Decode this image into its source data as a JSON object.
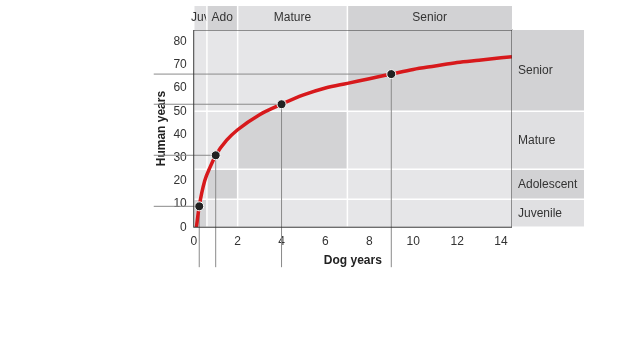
{
  "chart_data": {
    "type": "line",
    "x_label": "Dog years",
    "y_label": "Human years",
    "x": [
      0.12,
      0.25,
      0.5,
      0.75,
      1,
      1.5,
      2,
      3,
      4,
      5,
      6,
      7,
      8,
      9,
      10,
      11,
      12,
      13,
      14,
      14.5
    ],
    "values": [
      0,
      9,
      20,
      26,
      31,
      37.5,
      42,
      48.5,
      53,
      57,
      60,
      62,
      64,
      66,
      68,
      69.5,
      71,
      72,
      73,
      73.5
    ],
    "color": "#d7191c",
    "points": {
      "x": [
        0.25,
        1,
        4,
        9
      ],
      "values": [
        9,
        31,
        53,
        66
      ],
      "color": "#222222",
      "marker": "circle"
    },
    "xlim": [
      0,
      14.5
    ],
    "xticks": [
      0,
      2,
      4,
      6,
      8,
      10,
      12,
      14
    ],
    "ylim": [
      0,
      85
    ],
    "yticks": [
      0,
      10,
      20,
      30,
      40,
      50,
      60,
      70,
      80
    ],
    "grid": false,
    "dog_stages": [
      {
        "label": "Juv",
        "range": [
          0,
          0.6
        ]
      },
      {
        "label": "Ado",
        "range": [
          0.6,
          2
        ]
      },
      {
        "label": "Mature",
        "range": [
          2,
          7
        ]
      },
      {
        "label": "Senior",
        "range": [
          7,
          14.5
        ]
      }
    ],
    "human_stages": [
      {
        "label": "Juvenile",
        "range": [
          0,
          12
        ]
      },
      {
        "label": "Adolescent",
        "range": [
          12,
          25
        ]
      },
      {
        "label": "Mature",
        "range": [
          25,
          50
        ]
      },
      {
        "label": "Senior",
        "range": [
          50,
          85
        ]
      }
    ]
  }
}
